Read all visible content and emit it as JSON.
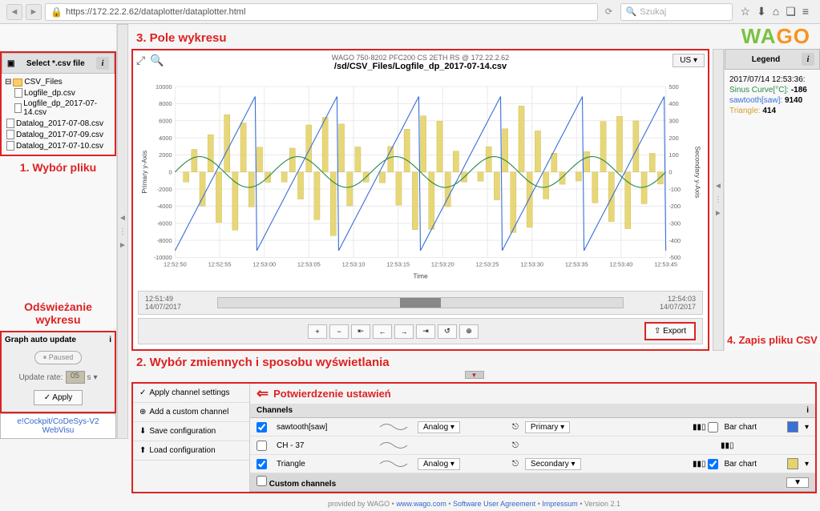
{
  "browser": {
    "url": "https://172.22.2.62/dataplotter/dataplotter.html",
    "search_placeholder": "Szukaj"
  },
  "annotations": {
    "file_select": "1. Wybór pliku",
    "refresh": "Odświeżanie wykresu",
    "chart_field": "3. Pole wykresu",
    "vars": "2. Wybór zmiennych i sposobu wyświetlania",
    "confirm": "Potwierdzenie ustawień",
    "save_csv": "4. Zapis pliku CSV"
  },
  "file_panel": {
    "title": "Select *.csv file",
    "folder": "CSV_Files",
    "files": [
      "Logfile_dp.csv",
      "Logfile_dp_2017-07-14.csv",
      "Datalog_2017-07-08.csv",
      "Datalog_2017-07-09.csv",
      "Datalog_2017-07-10.csv"
    ]
  },
  "auto_update": {
    "title": "Graph auto update",
    "paused": "Paused",
    "rate_label": "Update rate:",
    "rate_value": "05",
    "rate_unit": "s",
    "apply": "✓  Apply"
  },
  "links": {
    "label": "e!Cockpit/CoDeSys-V2 WebVisu"
  },
  "chart": {
    "sub": "WAGO 750-8202 PFC200 CS 2ETH RS @ 172.22.2.62",
    "path": "/sd/CSV_Files/Logfile_dp_2017-07-14.csv",
    "us_btn": "US ▾",
    "y1_label": "Primary y-Axis",
    "y2_label": "Secondary y-Axis",
    "x_label": "Time",
    "y1_ticks": [
      "10000",
      "8000",
      "6000",
      "4000",
      "2000",
      "0",
      "-2000",
      "-4000",
      "-6000",
      "-8000",
      "-10000"
    ],
    "y2_ticks": [
      "500",
      "400",
      "300",
      "200",
      "100",
      "0",
      "-100",
      "-200",
      "-300",
      "-400",
      "-500"
    ],
    "x_ticks": [
      "12:52:50",
      "12:52:55",
      "12:53:00",
      "12:53:05",
      "12:53:10",
      "12:53:15",
      "12:53:20",
      "12:53:25",
      "12:53:30",
      "12:53:35",
      "12:53:40",
      "12:53:45"
    ],
    "nav": {
      "from_time": "12:51:49",
      "from_date": "14/07/2017",
      "to_time": "12:54:03",
      "to_date": "14/07/2017"
    },
    "export": "⇧  Export",
    "colors": {
      "sinus": "#2a8a4a",
      "sawtooth": "#3a6fd8",
      "triangle": "#e6d36a",
      "grid": "#e8e8e8"
    }
  },
  "legend": {
    "title": "Legend",
    "timestamp": "2017/07/14 12:53:36:",
    "items": [
      {
        "label": "Sinus Curve[°C]:",
        "value": "-186",
        "color": "#2a8a4a"
      },
      {
        "label": "sawtooth[saw]:",
        "value": "9140",
        "color": "#3a6fd8"
      },
      {
        "label": "Triangle:",
        "value": "414",
        "color": "#d6a22a"
      }
    ]
  },
  "channel_buttons": {
    "apply": "Apply channel settings",
    "add": "Add a custom channel",
    "save": "Save configuration",
    "load": "Load configuration"
  },
  "channels": {
    "title": "Channels",
    "custom_title": "Custom channels",
    "rows": [
      {
        "checked": true,
        "name": "sawtooth[saw]",
        "type": "Analog ▾",
        "axis": "Primary ▾",
        "bar": "Bar chart",
        "bar_checked": false,
        "color": "#3a6fd8"
      },
      {
        "checked": false,
        "name": "CH - 37",
        "type": "",
        "axis": "",
        "bar": "",
        "bar_checked": false,
        "color": ""
      },
      {
        "checked": true,
        "name": "Triangle",
        "type": "Analog ▾",
        "axis": "Secondary ▾",
        "bar": "Bar chart",
        "bar_checked": true,
        "color": "#e6d36a"
      }
    ]
  },
  "footer": {
    "text_pre": "provided by WAGO • ",
    "link1": "www.wago.com",
    "text_mid1": " • ",
    "link2": "Software User Agreement",
    "text_mid2": " • ",
    "link3": "Impressum",
    "text_post": " • Version 2.1"
  }
}
